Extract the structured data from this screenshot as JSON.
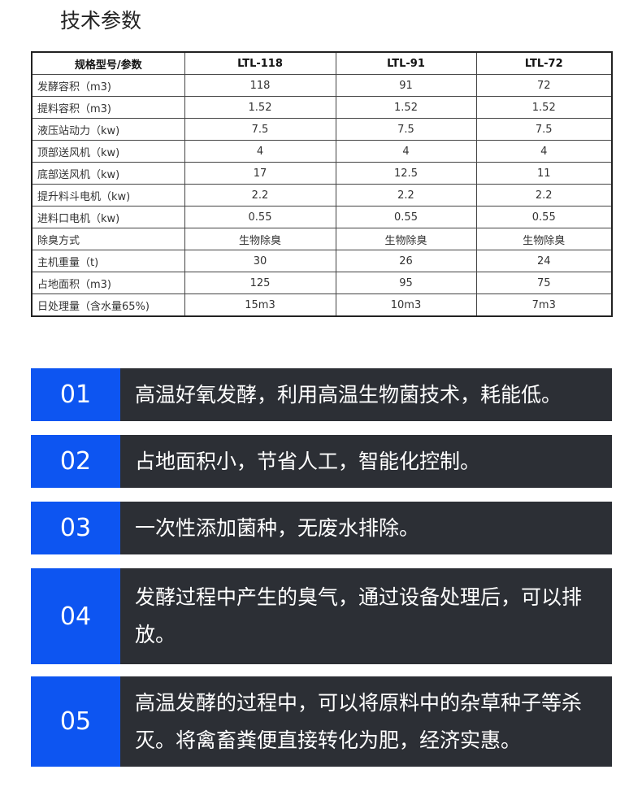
{
  "title": "技术参数",
  "table": {
    "headers": [
      "规格型号/参数",
      "LTL-118",
      "LTL-91",
      "LTL-72"
    ],
    "rows": [
      [
        "发酵容积（m3)",
        "118",
        "91",
        "72"
      ],
      [
        "提料容积（m3)",
        "1.52",
        "1.52",
        "1.52"
      ],
      [
        "液压站动力（kw)",
        "7.5",
        "7.5",
        "7.5"
      ],
      [
        "顶部送风机（kw)",
        "4",
        "4",
        "4"
      ],
      [
        "底部送风机（kw)",
        "17",
        "12.5",
        "11"
      ],
      [
        "提升料斗电机（kw)",
        "2.2",
        "2.2",
        "2.2"
      ],
      [
        "进料口电机（kw)",
        "0.55",
        "0.55",
        "0.55"
      ],
      [
        "除臭方式",
        "生物除臭",
        "生物除臭",
        "生物除臭"
      ],
      [
        "主机重量（t)",
        "30",
        "26",
        "24"
      ],
      [
        "占地面积（m3)",
        "125",
        "95",
        "75"
      ],
      [
        "日处理量（含水量65%)",
        "15m3",
        "10m3",
        "7m3"
      ]
    ]
  },
  "features": [
    {
      "num": "01",
      "text": "高温好氧发酵，利用高温生物菌技术，耗能低。"
    },
    {
      "num": "02",
      "text": "占地面积小，节省人工，智能化控制。"
    },
    {
      "num": "03",
      "text": "一次性添加菌种，无废水排除。"
    },
    {
      "num": "04",
      "text": "发酵过程中产生的臭气，通过设备处理后，可以排放。"
    },
    {
      "num": "05",
      "text": "高温发酵的过程中，可以将原料中的杂草种子等杀灭。将禽畜粪便直接转化为肥，经济实惠。"
    }
  ],
  "colors": {
    "accent": "#0d55f1",
    "panel": "#2c2f35"
  }
}
